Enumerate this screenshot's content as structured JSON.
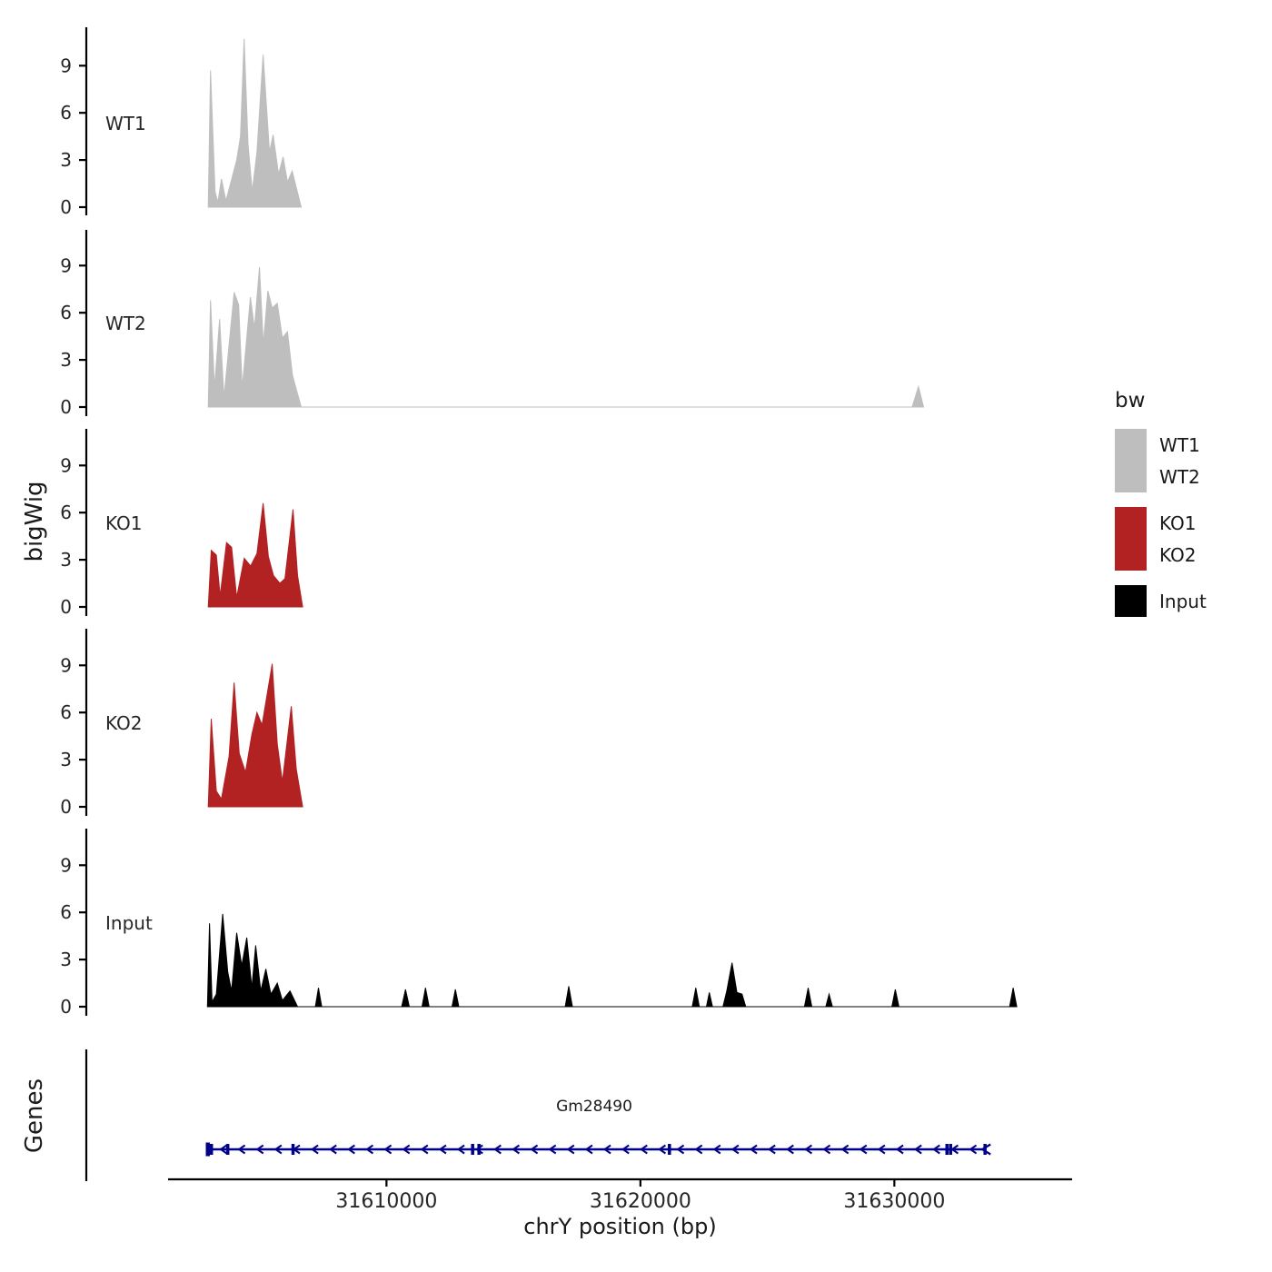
{
  "figure": {
    "ylabel": "bigWig",
    "genes_panel_label": "Genes",
    "xlabel": "chrY position (bp)",
    "legend": {
      "title": "bw",
      "entries": [
        {
          "label": "WT1",
          "color": "#BEBEBE"
        },
        {
          "label": "WT2",
          "color": "#BEBEBE"
        },
        {
          "label": "KO1",
          "color": "#B22222"
        },
        {
          "label": "KO2",
          "color": "#B22222"
        },
        {
          "label": "Input",
          "color": "#000000"
        }
      ]
    }
  },
  "chart_data": {
    "type": "area",
    "title": "",
    "xlabel": "chrY position (bp)",
    "ylabel": "bigWig",
    "x_range": [
      31601400,
      31637000
    ],
    "x_ticks": [
      31610000,
      31620000,
      31630000
    ],
    "x_tick_labels": [
      "31610000",
      "31620000",
      "31630000"
    ],
    "y_ticks": [
      0,
      3,
      6,
      9
    ],
    "y_range": [
      0,
      11
    ],
    "tracks": [
      {
        "name": "WT1",
        "color": "#BEBEBE",
        "points": [
          [
            31602980,
            0
          ],
          [
            31603071,
            8.7
          ],
          [
            31603250,
            1.0
          ],
          [
            31603360,
            0.3
          ],
          [
            31603500,
            1.8
          ],
          [
            31603680,
            0.4
          ],
          [
            31604100,
            3.0
          ],
          [
            31604250,
            4.5
          ],
          [
            31604393,
            10.7
          ],
          [
            31604550,
            4.0
          ],
          [
            31604714,
            1.0
          ],
          [
            31604900,
            3.5
          ],
          [
            31605143,
            9.7
          ],
          [
            31605393,
            3.5
          ],
          [
            31605536,
            4.6
          ],
          [
            31605750,
            2.1
          ],
          [
            31605929,
            3.2
          ],
          [
            31606100,
            1.6
          ],
          [
            31606286,
            2.3
          ],
          [
            31606643,
            0
          ]
        ]
      },
      {
        "name": "WT2",
        "color": "#BEBEBE",
        "points": [
          [
            31602980,
            0
          ],
          [
            31603071,
            6.8
          ],
          [
            31603230,
            1.2
          ],
          [
            31603430,
            5.6
          ],
          [
            31603600,
            0.6
          ],
          [
            31604000,
            7.3
          ],
          [
            31604180,
            6.5
          ],
          [
            31604320,
            1.2
          ],
          [
            31604640,
            7.0
          ],
          [
            31604800,
            5.0
          ],
          [
            31605000,
            8.9
          ],
          [
            31605150,
            4.0
          ],
          [
            31605330,
            7.4
          ],
          [
            31605500,
            6.3
          ],
          [
            31605700,
            6.6
          ],
          [
            31605900,
            4.4
          ],
          [
            31606100,
            4.8
          ],
          [
            31606300,
            2.0
          ],
          [
            31606643,
            0
          ],
          [
            31630700,
            0
          ],
          [
            31630950,
            1.3
          ],
          [
            31631150,
            0
          ]
        ]
      },
      {
        "name": "KO1",
        "color": "#B22222",
        "points": [
          [
            31602980,
            0
          ],
          [
            31603100,
            3.6
          ],
          [
            31603300,
            3.3
          ],
          [
            31603450,
            0.7
          ],
          [
            31603700,
            4.1
          ],
          [
            31603900,
            3.8
          ],
          [
            31604100,
            0.6
          ],
          [
            31604400,
            3.1
          ],
          [
            31604650,
            2.6
          ],
          [
            31604900,
            3.4
          ],
          [
            31605143,
            6.6
          ],
          [
            31605350,
            3.2
          ],
          [
            31605550,
            2.0
          ],
          [
            31605800,
            1.5
          ],
          [
            31606000,
            1.8
          ],
          [
            31606321,
            6.2
          ],
          [
            31606500,
            2.0
          ],
          [
            31606700,
            0
          ]
        ]
      },
      {
        "name": "KO2",
        "color": "#B22222",
        "points": [
          [
            31602980,
            0
          ],
          [
            31603100,
            5.6
          ],
          [
            31603300,
            1.0
          ],
          [
            31603500,
            0.5
          ],
          [
            31603800,
            3.2
          ],
          [
            31604000,
            7.9
          ],
          [
            31604200,
            3.4
          ],
          [
            31604450,
            2.2
          ],
          [
            31604700,
            4.6
          ],
          [
            31604900,
            6.0
          ],
          [
            31605100,
            5.2
          ],
          [
            31605500,
            9.1
          ],
          [
            31605700,
            4.0
          ],
          [
            31605900,
            1.6
          ],
          [
            31606250,
            6.4
          ],
          [
            31606450,
            2.4
          ],
          [
            31606700,
            0
          ]
        ]
      },
      {
        "name": "Input",
        "color": "#000000",
        "points": [
          [
            31602950,
            0
          ],
          [
            31603030,
            5.3
          ],
          [
            31603130,
            0.3
          ],
          [
            31603300,
            0.8
          ],
          [
            31603550,
            5.9
          ],
          [
            31603750,
            2.2
          ],
          [
            31603900,
            1.0
          ],
          [
            31604100,
            4.7
          ],
          [
            31604300,
            2.6
          ],
          [
            31604500,
            4.4
          ],
          [
            31604700,
            1.2
          ],
          [
            31604850,
            3.9
          ],
          [
            31605050,
            1.0
          ],
          [
            31605250,
            2.4
          ],
          [
            31605450,
            0.8
          ],
          [
            31605700,
            1.5
          ],
          [
            31605900,
            0.4
          ],
          [
            31606200,
            1.0
          ],
          [
            31606500,
            0
          ],
          [
            31607200,
            0
          ],
          [
            31607321,
            1.2
          ],
          [
            31607450,
            0
          ],
          [
            31610600,
            0
          ],
          [
            31610750,
            1.1
          ],
          [
            31610900,
            0
          ],
          [
            31611400,
            0
          ],
          [
            31611536,
            1.2
          ],
          [
            31611680,
            0
          ],
          [
            31612580,
            0
          ],
          [
            31612714,
            1.1
          ],
          [
            31612850,
            0
          ],
          [
            31617040,
            0
          ],
          [
            31617179,
            1.3
          ],
          [
            31617320,
            0
          ],
          [
            31622040,
            0
          ],
          [
            31622179,
            1.2
          ],
          [
            31622320,
            0
          ],
          [
            31622600,
            0
          ],
          [
            31622714,
            0.9
          ],
          [
            31622840,
            0
          ],
          [
            31623250,
            0
          ],
          [
            31623400,
            1.0
          ],
          [
            31623607,
            2.8
          ],
          [
            31623800,
            0.9
          ],
          [
            31624000,
            0.8
          ],
          [
            31624150,
            0
          ],
          [
            31626460,
            0
          ],
          [
            31626607,
            1.2
          ],
          [
            31626750,
            0
          ],
          [
            31627300,
            0
          ],
          [
            31627429,
            0.8
          ],
          [
            31627560,
            0
          ],
          [
            31629900,
            0
          ],
          [
            31630036,
            1.1
          ],
          [
            31630180,
            0
          ],
          [
            31634540,
            0
          ],
          [
            31634679,
            1.2
          ],
          [
            31634820,
            0
          ]
        ]
      }
    ],
    "genes_track": {
      "label": "Genes",
      "arrow_spacing_bp": 720,
      "genes": [
        {
          "name": "Gm28490",
          "start": 31602964,
          "end": 31633571,
          "strand": "-",
          "color": "#00008B",
          "exons": [
            31602964,
            31603107,
            31603750,
            31606321,
            31613393,
            31613643,
            31621143,
            31632071,
            31632214,
            31633571
          ]
        }
      ]
    }
  }
}
